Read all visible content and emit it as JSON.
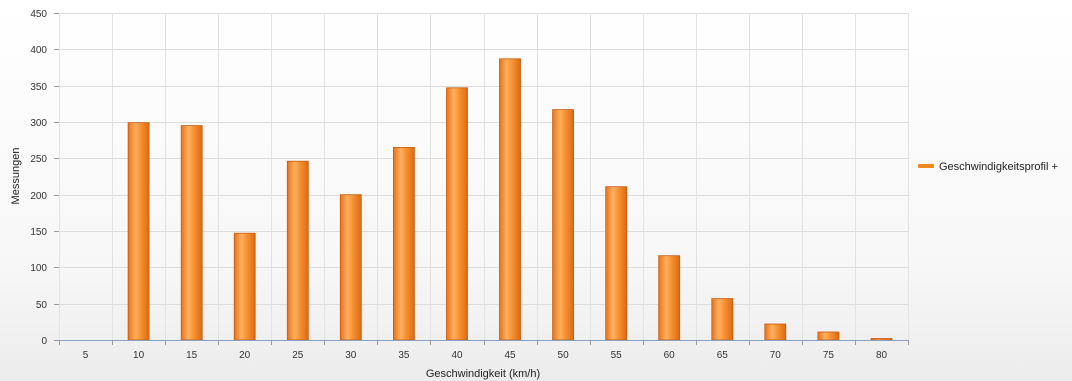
{
  "chart_data": {
    "type": "bar",
    "title": "",
    "xlabel": "Geschwindigkeit (km/h)",
    "ylabel": "Messungen",
    "categories": [
      "5",
      "10",
      "15",
      "20",
      "25",
      "30",
      "35",
      "40",
      "45",
      "50",
      "55",
      "60",
      "65",
      "70",
      "75",
      "80"
    ],
    "series": [
      {
        "name": "Geschwindigkeitsprofil +",
        "color": "#f48a1e",
        "values": [
          0,
          299,
          295,
          147,
          246,
          200,
          265,
          347,
          387,
          317,
          211,
          116,
          57,
          22,
          11,
          2
        ]
      }
    ],
    "ylim": [
      0,
      450
    ],
    "yticks": [
      0,
      50,
      100,
      150,
      200,
      250,
      300,
      350,
      400,
      450
    ],
    "grid": true,
    "legend_position": "right"
  }
}
